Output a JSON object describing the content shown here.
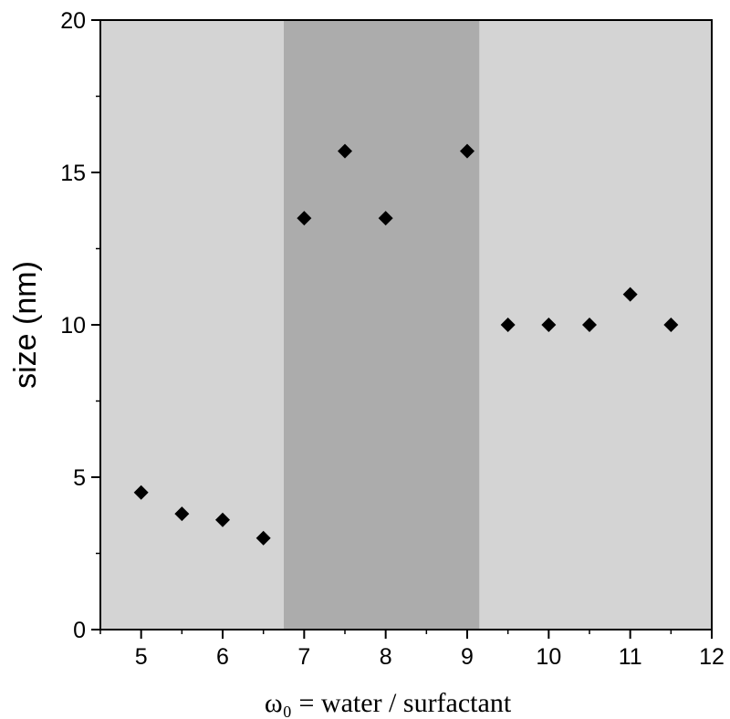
{
  "chart_data": {
    "type": "scatter",
    "title": "",
    "xlabel": "ω₀ = water / surfactant",
    "ylabel": "size (nm)",
    "xlim": [
      4.5,
      12
    ],
    "ylim": [
      0,
      20
    ],
    "xticks": [
      5,
      6,
      7,
      8,
      9,
      10,
      11,
      12
    ],
    "yticks": [
      0,
      5,
      10,
      15,
      20
    ],
    "grid": false,
    "marker": "diamond",
    "colors": {
      "light_region": "#d4d4d4",
      "dark_region": "#acacac",
      "marker": "#000000",
      "axis": "#000000"
    },
    "regions": [
      {
        "from": 4.5,
        "to": 6.75,
        "shade": "light"
      },
      {
        "from": 6.75,
        "to": 9.15,
        "shade": "dark"
      },
      {
        "from": 9.15,
        "to": 12,
        "shade": "light"
      }
    ],
    "series": [
      {
        "name": "size",
        "x": [
          5,
          5.5,
          6,
          6.5,
          7,
          7.5,
          8,
          9,
          9.5,
          10,
          10.5,
          11,
          11.5
        ],
        "y": [
          4.5,
          3.8,
          3.6,
          3.0,
          13.5,
          15.7,
          13.5,
          15.7,
          10,
          10,
          10,
          11,
          10
        ]
      }
    ]
  }
}
